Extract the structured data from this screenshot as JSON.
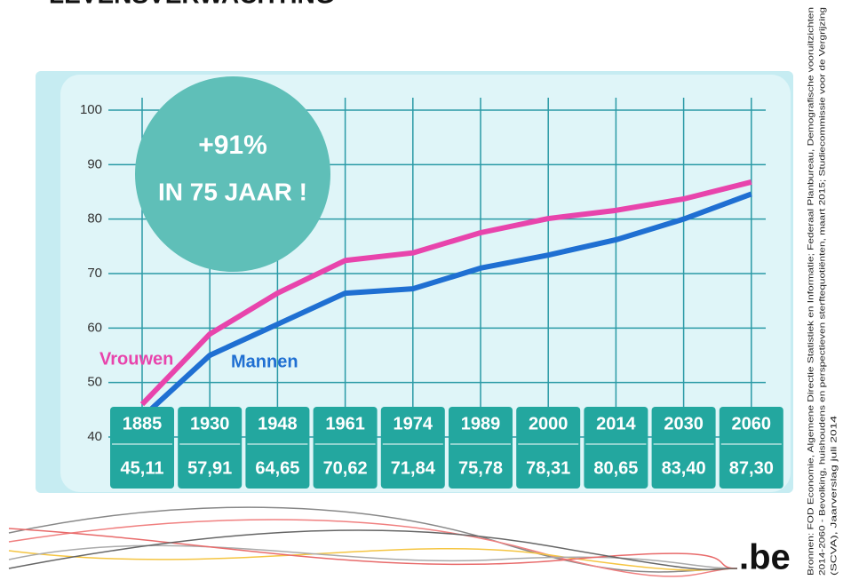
{
  "chart_data": {
    "type": "line",
    "title": "LEVENSVERWACHTING",
    "annotation": [
      "+91%",
      "IN 75 JAAR !"
    ],
    "categories": [
      "1885",
      "1930",
      "1948",
      "1961",
      "1974",
      "1989",
      "2000",
      "2014",
      "2030",
      "2060"
    ],
    "series": [
      {
        "name": "Vrouwen",
        "color": "#e844ac",
        "values": [
          46.0,
          58.9,
          66.4,
          72.4,
          73.8,
          77.5,
          80.1,
          81.6,
          83.7,
          86.8
        ]
      },
      {
        "name": "Mannen",
        "color": "#1f6fd2",
        "values": [
          43.6,
          55.0,
          60.7,
          66.4,
          67.2,
          71.0,
          73.4,
          76.2,
          80.0,
          84.6
        ]
      }
    ],
    "box_values": {
      "values": [
        45.11,
        57.91,
        64.65,
        70.62,
        71.84,
        75.78,
        78.31,
        80.65,
        83.4,
        87.3
      ],
      "value_labels": [
        "45,11",
        "57,91",
        "64,65",
        "70,62",
        "71,84",
        "75,78",
        "78,31",
        "80,65",
        "83,40",
        "87,30"
      ]
    },
    "ylim": [
      40,
      100
    ],
    "yticks": [
      40,
      50,
      60,
      70,
      80,
      90,
      100
    ],
    "grid": true,
    "source": [
      "Bronnen: FOD Economie, Algemene Directie Statistiek en Informatie; Federaal Planbureau, Demografische vooruitzichten",
      "2014-2060 - Bevolking, huishoudens en perspectieven sterftequotiënten, maart 2015; Studiecommissie voor de Vergrijzing",
      "(SCVA), Jaarverslag juli 2014"
    ],
    "logo": ".be"
  }
}
